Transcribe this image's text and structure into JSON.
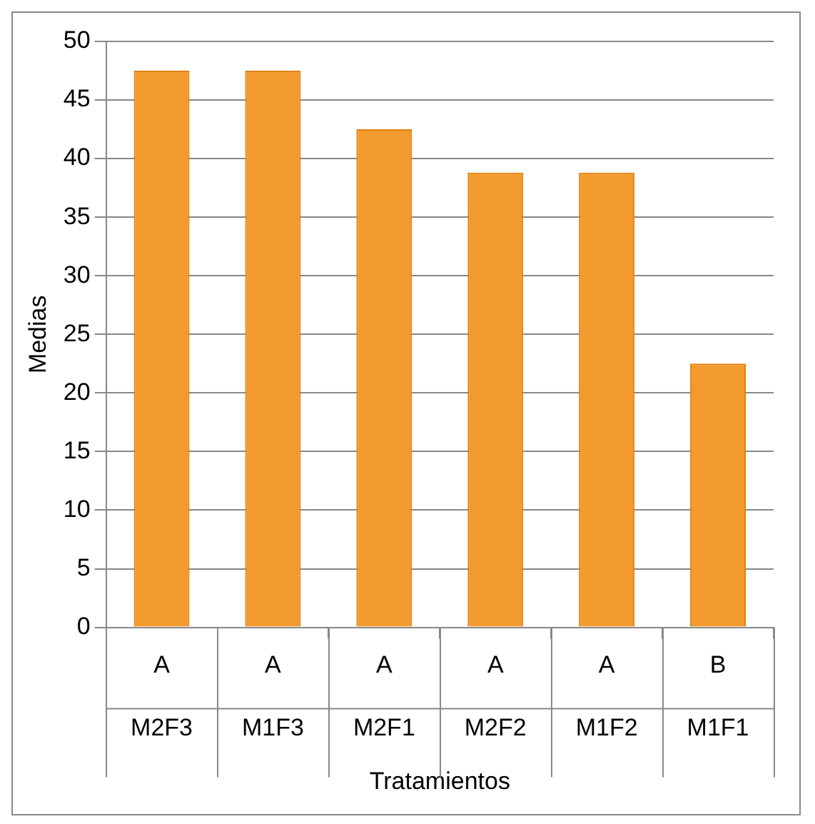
{
  "chart_data": {
    "type": "bar",
    "xlabel": "Tratamientos",
    "ylabel": "Medias",
    "categories": [
      "M2F3",
      "M1F3",
      "M2F1",
      "M2F2",
      "M1F2",
      "M1F1"
    ],
    "values": [
      47.5,
      47.5,
      42.5,
      38.8,
      38.8,
      22.5
    ],
    "color": "#f39a2e",
    "ylim": [
      0,
      50
    ],
    "yticks": [
      0,
      5,
      10,
      15,
      20,
      25,
      30,
      35,
      40,
      45,
      50
    ],
    "grid": "y",
    "legend": false,
    "annotations": [
      "A",
      "A",
      "A",
      "A",
      "A",
      "B"
    ]
  }
}
